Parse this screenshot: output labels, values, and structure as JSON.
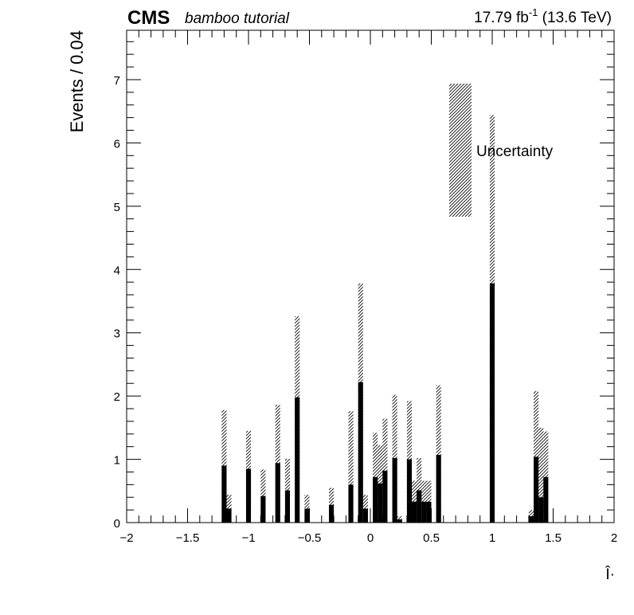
{
  "header": {
    "experiment": "CMS",
    "subtitle": "bamboo tutorial",
    "lumi": "17.79 fb",
    "lumi_sup": "-1",
    "energy": " (13.6 TeV)"
  },
  "chart_data": {
    "type": "bar",
    "xlabel": "Î·",
    "ylabel": "Events / 0.04",
    "xlim": [
      -2,
      2
    ],
    "ylim": [
      0,
      7.78
    ],
    "bin_width": 0.04,
    "xticks": [
      -2,
      -1.5,
      -1,
      -0.5,
      0,
      0.5,
      1,
      1.5,
      2
    ],
    "xtick_labels": [
      "−2",
      "−1.5",
      "−1",
      "−0.5",
      "0",
      "0.5",
      "1",
      "1.5",
      "2"
    ],
    "yticks": [
      0,
      1,
      2,
      3,
      4,
      5,
      6,
      7
    ],
    "ytick_labels": [
      "0",
      "1",
      "2",
      "3",
      "4",
      "5",
      "6",
      "7"
    ],
    "grid": false,
    "legend": {
      "placement": "top-right",
      "entries": [
        {
          "label": "Uncertainty",
          "style": "hatched"
        }
      ]
    },
    "series": [
      {
        "name": "",
        "bins": [
          {
            "x": -1.2,
            "y": 0.9,
            "unc": 0.88
          },
          {
            "x": -1.16,
            "y": 0.22,
            "unc": 0.22
          },
          {
            "x": -1.0,
            "y": 0.85,
            "unc": 0.6
          },
          {
            "x": -0.88,
            "y": 0.42,
            "unc": 0.42
          },
          {
            "x": -0.76,
            "y": 0.94,
            "unc": 0.92
          },
          {
            "x": -0.68,
            "y": 0.51,
            "unc": 0.5
          },
          {
            "x": -0.6,
            "y": 1.98,
            "unc": 1.28
          },
          {
            "x": -0.52,
            "y": 0.22,
            "unc": 0.22
          },
          {
            "x": -0.32,
            "y": 0.28,
            "unc": 0.27
          },
          {
            "x": -0.16,
            "y": 0.6,
            "unc": 1.16
          },
          {
            "x": -0.08,
            "y": 2.22,
            "unc": 1.56
          },
          {
            "x": -0.04,
            "y": 0.22,
            "unc": 0.22
          },
          {
            "x": 0.04,
            "y": 0.72,
            "unc": 0.7
          },
          {
            "x": 0.08,
            "y": 0.62,
            "unc": 0.6
          },
          {
            "x": 0.12,
            "y": 0.82,
            "unc": 0.82
          },
          {
            "x": 0.2,
            "y": 1.02,
            "unc": 1.0
          },
          {
            "x": 0.24,
            "y": 0.05,
            "unc": 0.05
          },
          {
            "x": 0.32,
            "y": 1.0,
            "unc": 0.92
          },
          {
            "x": 0.36,
            "y": 0.33,
            "unc": 0.33
          },
          {
            "x": 0.4,
            "y": 0.51,
            "unc": 0.51
          },
          {
            "x": 0.44,
            "y": 0.33,
            "unc": 0.33
          },
          {
            "x": 0.48,
            "y": 0.33,
            "unc": 0.33
          },
          {
            "x": 0.56,
            "y": 1.07,
            "unc": 1.1
          },
          {
            "x": 1.0,
            "y": 3.78,
            "unc": 2.66
          },
          {
            "x": 1.32,
            "y": 0.1,
            "unc": 0.1
          },
          {
            "x": 1.36,
            "y": 1.04,
            "unc": 1.04
          },
          {
            "x": 1.4,
            "y": 0.4,
            "unc": 1.1
          },
          {
            "x": 1.44,
            "y": 0.72,
            "unc": 0.72
          }
        ]
      }
    ]
  }
}
